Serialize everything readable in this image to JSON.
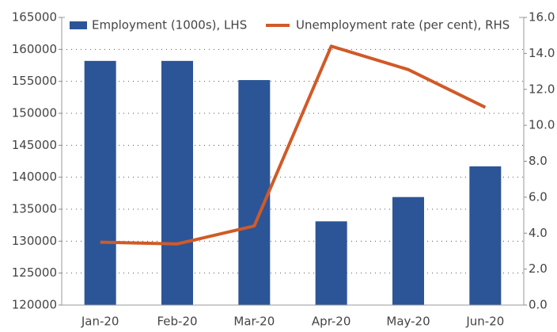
{
  "chart_data": {
    "type": "bar-line",
    "categories": [
      "Jan-20",
      "Feb-20",
      "Mar-20",
      "Apr-20",
      "May-20",
      "Jun-20"
    ],
    "series": [
      {
        "name": "Employment (1000s), LHS",
        "color": "#2b5597",
        "type": "bar",
        "axis": "y",
        "values": [
          158200,
          158200,
          155200,
          133100,
          136900,
          141700
        ]
      },
      {
        "name": "Unemployment rate (per cent), RHS",
        "color": "#d05a28",
        "type": "line",
        "axis": "y2",
        "values": [
          3.5,
          3.4,
          4.4,
          14.4,
          13.1,
          11.0
        ]
      }
    ],
    "ylim": [
      120000,
      165000
    ],
    "yticks": [
      120000,
      125000,
      130000,
      135000,
      140000,
      145000,
      150000,
      155000,
      160000,
      165000
    ],
    "y2lim": [
      0,
      16
    ],
    "y2ticks": [
      {
        "value": 0,
        "label": "0.0"
      },
      {
        "value": 2,
        "label": "2.0"
      },
      {
        "value": 4,
        "label": "4.0"
      },
      {
        "value": 6,
        "label": "6.0"
      },
      {
        "value": 8,
        "label": "8.0"
      },
      {
        "value": 10,
        "label": "10.0"
      },
      {
        "value": 12,
        "label": "12.0"
      },
      {
        "value": 14,
        "label": "14.0"
      },
      {
        "value": 16,
        "label": "16.0"
      }
    ],
    "grid": true
  }
}
